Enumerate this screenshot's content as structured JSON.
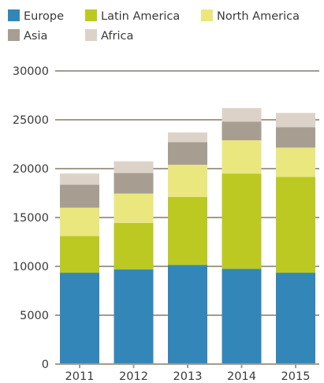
{
  "chart_data": {
    "type": "bar",
    "stacked": true,
    "categories": [
      "2011",
      "2012",
      "2013",
      "2014",
      "2015"
    ],
    "series": [
      {
        "name": "Europe",
        "color": "#3387b8",
        "values": [
          9350,
          9700,
          10150,
          9750,
          9350
        ]
      },
      {
        "name": "Latin America",
        "color": "#bcc922",
        "values": [
          3750,
          4750,
          6950,
          9750,
          9800
        ]
      },
      {
        "name": "North America",
        "color": "#eae77f",
        "values": [
          2900,
          3000,
          3300,
          3400,
          3000
        ]
      },
      {
        "name": "Asia",
        "color": "#a79e91",
        "values": [
          2350,
          2100,
          2300,
          1900,
          2100
        ]
      },
      {
        "name": "Africa",
        "color": "#ddd2c8",
        "values": [
          1150,
          1200,
          1000,
          1400,
          1450
        ]
      }
    ],
    "ylim": [
      0,
      30000
    ],
    "yticks": [
      0,
      5000,
      10000,
      15000,
      20000,
      25000,
      30000
    ],
    "grid": true,
    "legend_position": "top"
  }
}
